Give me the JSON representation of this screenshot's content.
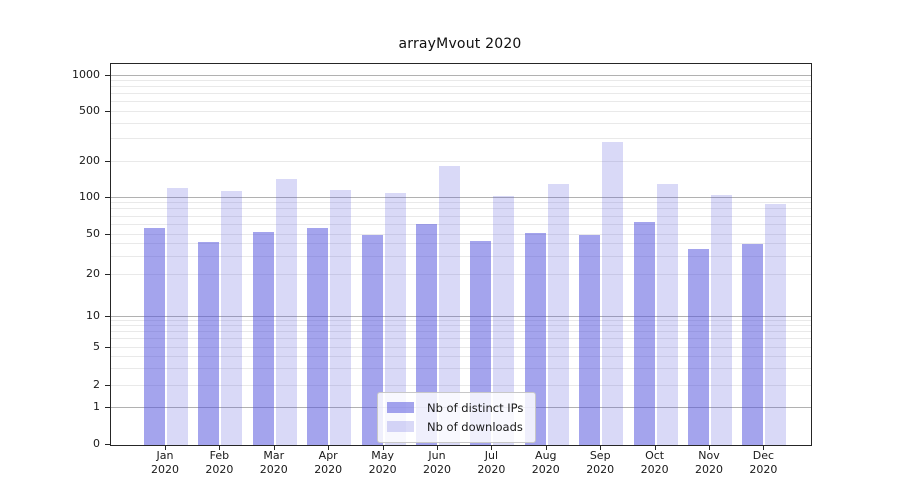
{
  "title": "arrayMvout 2020",
  "chart_data": {
    "type": "bar",
    "title": "arrayMvout 2020",
    "categories": [
      "Jan 2020",
      "Feb 2020",
      "Mar 2020",
      "Apr 2020",
      "May 2020",
      "Jun 2020",
      "Jul 2020",
      "Aug 2020",
      "Sep 2020",
      "Oct 2020",
      "Nov 2020",
      "Dec 2020"
    ],
    "series": [
      {
        "name": "Nb of distinct IPs",
        "color": "rgba(80,80,220,0.52)",
        "values": [
          56,
          42,
          52,
          56,
          50,
          61,
          43,
          51,
          50,
          63,
          36,
          40
        ]
      },
      {
        "name": "Nb of downloads",
        "color": "rgba(80,80,220,0.22)",
        "values": [
          119,
          113,
          142,
          115,
          110,
          185,
          103,
          130,
          285,
          130,
          105,
          89
        ]
      }
    ],
    "xlabel": "",
    "ylabel": "",
    "yscale": "symlog",
    "ylim": [
      0,
      1200
    ],
    "yticks": [
      0,
      1,
      2,
      5,
      10,
      20,
      50,
      100,
      200,
      500,
      1000
    ],
    "grid": "on",
    "legend_position": "lower center"
  },
  "axes": {
    "y_ticks": [
      {
        "value": 0,
        "label": "0"
      },
      {
        "value": 1,
        "label": "1"
      },
      {
        "value": 2,
        "label": "2"
      },
      {
        "value": 5,
        "label": "5"
      },
      {
        "value": 10,
        "label": "10"
      },
      {
        "value": 20,
        "label": "20"
      },
      {
        "value": 50,
        "label": "50"
      },
      {
        "value": 100,
        "label": "100"
      },
      {
        "value": 200,
        "label": "200"
      },
      {
        "value": 500,
        "label": "500"
      },
      {
        "value": 1000,
        "label": "1000"
      }
    ],
    "x_ticks": [
      {
        "month": "Jan",
        "year": "2020"
      },
      {
        "month": "Feb",
        "year": "2020"
      },
      {
        "month": "Mar",
        "year": "2020"
      },
      {
        "month": "Apr",
        "year": "2020"
      },
      {
        "month": "May",
        "year": "2020"
      },
      {
        "month": "Jun",
        "year": "2020"
      },
      {
        "month": "Jul",
        "year": "2020"
      },
      {
        "month": "Aug",
        "year": "2020"
      },
      {
        "month": "Sep",
        "year": "2020"
      },
      {
        "month": "Oct",
        "year": "2020"
      },
      {
        "month": "Nov",
        "year": "2020"
      },
      {
        "month": "Dec",
        "year": "2020"
      }
    ]
  },
  "legend": {
    "items": [
      {
        "label": "Nb of distinct IPs",
        "color": "rgba(80,80,220,0.52)"
      },
      {
        "label": "Nb of downloads",
        "color": "rgba(80,80,220,0.22)"
      }
    ]
  },
  "colors": {
    "bar_ips_rendered": "#a4a4ec",
    "bar_downloads_rendered": "#d8d8f7",
    "grid_major": "#b1b1b1",
    "grid_minor": "#e9e9e9",
    "frame": "#262626",
    "text": "#1a1a1a"
  }
}
